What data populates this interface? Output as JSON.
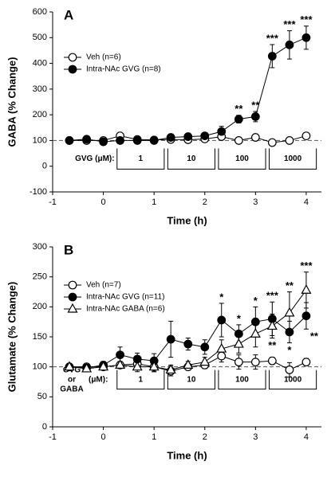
{
  "chart_data": [
    {
      "type": "line",
      "panel_label": "A",
      "xlabel": "Time (h)",
      "ylabel": "GABA (% Change)",
      "xlim": [
        -1,
        4.3
      ],
      "xticks": [
        -1,
        0,
        1,
        2,
        3,
        4
      ],
      "ylim": [
        -100,
        600
      ],
      "yticks": [
        -100,
        0,
        100,
        200,
        300,
        400,
        500,
        600
      ],
      "reference_line": 100,
      "treatment_label": "GVG (μM):",
      "doses": [
        "1",
        "10",
        "100",
        "1000"
      ],
      "x": [
        -0.67,
        -0.33,
        0,
        0.33,
        0.67,
        1,
        1.33,
        1.67,
        2,
        2.33,
        2.67,
        3,
        3.33,
        3.67,
        4
      ],
      "series": [
        {
          "name": "Veh (n=6)",
          "marker": "circle-open",
          "color": "#000000",
          "values": [
            100,
            100,
            100,
            118,
            104,
            102,
            104,
            103,
            106,
            115,
            100,
            112,
            92,
            100,
            118
          ],
          "errors": [
            5,
            5,
            5,
            8,
            5,
            5,
            5,
            5,
            6,
            8,
            8,
            8,
            8,
            6,
            8
          ],
          "stars_above": [
            null,
            null,
            null,
            null,
            null,
            null,
            null,
            null,
            null,
            null,
            null,
            null,
            null,
            null,
            null
          ],
          "stars_below": [
            null,
            null,
            null,
            null,
            null,
            null,
            null,
            null,
            null,
            null,
            null,
            null,
            null,
            null,
            null
          ]
        },
        {
          "name": "Intra-NAc GVG  (n=8)",
          "marker": "circle-filled",
          "color": "#000000",
          "values": [
            100,
            105,
            95,
            100,
            100,
            100,
            112,
            115,
            118,
            135,
            183,
            193,
            428,
            472,
            500
          ],
          "errors": [
            5,
            8,
            6,
            5,
            5,
            5,
            8,
            8,
            8,
            20,
            15,
            20,
            45,
            55,
            45
          ],
          "stars_above": [
            null,
            null,
            null,
            null,
            null,
            null,
            null,
            null,
            null,
            null,
            "**",
            "**",
            "***",
            "***",
            "***"
          ],
          "stars_below": [
            null,
            null,
            null,
            null,
            null,
            null,
            null,
            null,
            null,
            null,
            null,
            null,
            null,
            null,
            null
          ]
        }
      ]
    },
    {
      "type": "line",
      "panel_label": "B",
      "xlabel": "Time (h)",
      "ylabel": "Glutamate (% Change)",
      "xlim": [
        -1,
        4.3
      ],
      "xticks": [
        -1,
        0,
        1,
        2,
        3,
        4
      ],
      "ylim": [
        0,
        300
      ],
      "yticks": [
        0,
        50,
        100,
        150,
        200,
        250,
        300
      ],
      "reference_line": 100,
      "treatment_label": [
        "GVG",
        "or",
        "GABA"
      ],
      "unit_label": "(μM):",
      "doses": [
        "1",
        "10",
        "100",
        "1000"
      ],
      "x": [
        -0.67,
        -0.33,
        0,
        0.33,
        0.67,
        1,
        1.33,
        1.67,
        2,
        2.33,
        2.67,
        3,
        3.33,
        3.67,
        4
      ],
      "series": [
        {
          "name": "Veh (n=7)",
          "marker": "circle-open",
          "color": "#000000",
          "values": [
            100,
            100,
            100,
            103,
            105,
            100,
            93,
            100,
            103,
            118,
            108,
            108,
            110,
            95,
            108
          ],
          "errors": [
            3,
            3,
            4,
            5,
            6,
            8,
            8,
            5,
            6,
            10,
            12,
            12,
            6,
            12,
            6
          ],
          "stars_above": [
            null,
            null,
            null,
            null,
            null,
            null,
            null,
            null,
            null,
            null,
            null,
            null,
            null,
            null,
            null
          ],
          "stars_below": [
            null,
            null,
            null,
            null,
            null,
            null,
            null,
            null,
            null,
            null,
            null,
            null,
            null,
            null,
            null
          ]
        },
        {
          "name": "Intra-NAc GVG (n=11)",
          "marker": "circle-filled",
          "color": "#000000",
          "values": [
            100,
            98,
            103,
            120,
            113,
            110,
            146,
            138,
            133,
            178,
            155,
            175,
            180,
            158,
            185
          ],
          "errors": [
            4,
            4,
            6,
            13,
            10,
            12,
            30,
            10,
            12,
            28,
            15,
            25,
            28,
            18,
            22
          ],
          "stars_above": [
            null,
            null,
            null,
            null,
            null,
            null,
            null,
            null,
            null,
            "*",
            "*",
            "*",
            "***",
            null,
            null
          ],
          "stars_below": [
            null,
            null,
            null,
            null,
            null,
            null,
            null,
            null,
            null,
            null,
            null,
            null,
            null,
            "*",
            "**"
          ]
        },
        {
          "name": "Intra-NAc GABA (n=6)",
          "marker": "triangle-open",
          "color": "#000000",
          "values": [
            100,
            97,
            100,
            103,
            100,
            100,
            95,
            103,
            108,
            130,
            138,
            155,
            168,
            190,
            228
          ],
          "errors": [
            3,
            3,
            4,
            6,
            8,
            8,
            8,
            6,
            8,
            15,
            15,
            22,
            20,
            35,
            30
          ],
          "stars_above": [
            null,
            null,
            null,
            null,
            null,
            null,
            null,
            null,
            null,
            null,
            null,
            null,
            null,
            "**",
            "***"
          ],
          "stars_below": [
            null,
            null,
            null,
            null,
            null,
            null,
            null,
            null,
            null,
            null,
            null,
            null,
            "**",
            null,
            null
          ]
        }
      ]
    }
  ]
}
